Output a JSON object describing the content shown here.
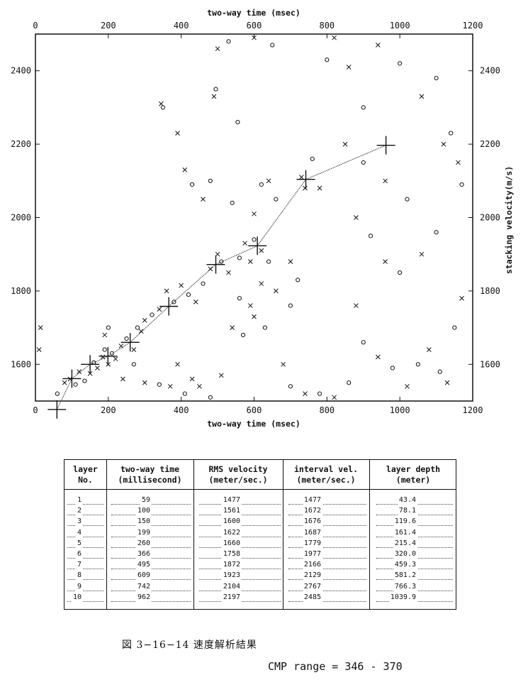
{
  "chart_data": {
    "type": "scatter",
    "title": "",
    "xlabel": "two-way time (msec)",
    "ylabel": "stacking velocity(m/s)",
    "xlim": [
      0,
      1200
    ],
    "ylim": [
      1500,
      2500
    ],
    "x_ticks": [
      "0",
      "200",
      "400",
      "600",
      "800",
      "1000",
      "1200"
    ],
    "y_ticks": [
      "1600",
      "1800",
      "2000",
      "2200",
      "2400"
    ],
    "picked_velocity_function": {
      "x": [
        59,
        100,
        150,
        199,
        260,
        366,
        495,
        609,
        742,
        962
      ],
      "y": [
        1477,
        1561,
        1600,
        1622,
        1660,
        1758,
        1872,
        1923,
        2104,
        2197
      ]
    },
    "semblance_markers": [
      {
        "x": 95,
        "y": 1560,
        "m": "x"
      },
      {
        "x": 110,
        "y": 1545,
        "m": "o"
      },
      {
        "x": 120,
        "y": 1580,
        "m": "x"
      },
      {
        "x": 135,
        "y": 1555,
        "m": "o"
      },
      {
        "x": 150,
        "y": 1575,
        "m": "x"
      },
      {
        "x": 160,
        "y": 1605,
        "m": "o"
      },
      {
        "x": 170,
        "y": 1590,
        "m": "x"
      },
      {
        "x": 185,
        "y": 1620,
        "m": "x"
      },
      {
        "x": 190,
        "y": 1640,
        "m": "o"
      },
      {
        "x": 200,
        "y": 1600,
        "m": "x"
      },
      {
        "x": 210,
        "y": 1630,
        "m": "o"
      },
      {
        "x": 220,
        "y": 1615,
        "m": "x"
      },
      {
        "x": 235,
        "y": 1650,
        "m": "x"
      },
      {
        "x": 250,
        "y": 1670,
        "m": "o"
      },
      {
        "x": 270,
        "y": 1640,
        "m": "x"
      },
      {
        "x": 280,
        "y": 1700,
        "m": "o"
      },
      {
        "x": 290,
        "y": 1690,
        "m": "x"
      },
      {
        "x": 300,
        "y": 1720,
        "m": "x"
      },
      {
        "x": 320,
        "y": 1735,
        "m": "o"
      },
      {
        "x": 340,
        "y": 1750,
        "m": "x"
      },
      {
        "x": 360,
        "y": 1800,
        "m": "x"
      },
      {
        "x": 380,
        "y": 1770,
        "m": "o"
      },
      {
        "x": 400,
        "y": 1815,
        "m": "x"
      },
      {
        "x": 420,
        "y": 1790,
        "m": "o"
      },
      {
        "x": 440,
        "y": 1770,
        "m": "x"
      },
      {
        "x": 460,
        "y": 1820,
        "m": "o"
      },
      {
        "x": 480,
        "y": 1860,
        "m": "x"
      },
      {
        "x": 500,
        "y": 1900,
        "m": "x"
      },
      {
        "x": 510,
        "y": 1880,
        "m": "o"
      },
      {
        "x": 530,
        "y": 1850,
        "m": "x"
      },
      {
        "x": 560,
        "y": 1890,
        "m": "o"
      },
      {
        "x": 575,
        "y": 1930,
        "m": "x"
      },
      {
        "x": 590,
        "y": 1880,
        "m": "x"
      },
      {
        "x": 600,
        "y": 1940,
        "m": "o"
      },
      {
        "x": 620,
        "y": 1910,
        "m": "x"
      },
      {
        "x": 640,
        "y": 1880,
        "m": "o"
      },
      {
        "x": 660,
        "y": 1800,
        "m": "x"
      },
      {
        "x": 700,
        "y": 1760,
        "m": "o"
      },
      {
        "x": 730,
        "y": 2110,
        "m": "x"
      },
      {
        "x": 740,
        "y": 2080,
        "m": "x"
      },
      {
        "x": 760,
        "y": 2160,
        "m": "o"
      },
      {
        "x": 780,
        "y": 2080,
        "m": "x"
      },
      {
        "x": 300,
        "y": 1550,
        "m": "x"
      },
      {
        "x": 340,
        "y": 1545,
        "m": "o"
      },
      {
        "x": 370,
        "y": 1540,
        "m": "x"
      },
      {
        "x": 390,
        "y": 1600,
        "m": "x"
      },
      {
        "x": 410,
        "y": 1520,
        "m": "o"
      },
      {
        "x": 450,
        "y": 1540,
        "m": "x"
      },
      {
        "x": 480,
        "y": 1510,
        "m": "o"
      },
      {
        "x": 510,
        "y": 1570,
        "m": "x"
      },
      {
        "x": 540,
        "y": 1700,
        "m": "x"
      },
      {
        "x": 570,
        "y": 1680,
        "m": "o"
      },
      {
        "x": 600,
        "y": 1730,
        "m": "x"
      },
      {
        "x": 630,
        "y": 1700,
        "m": "o"
      },
      {
        "x": 680,
        "y": 1600,
        "m": "x"
      },
      {
        "x": 700,
        "y": 1540,
        "m": "o"
      },
      {
        "x": 740,
        "y": 1520,
        "m": "x"
      },
      {
        "x": 780,
        "y": 1520,
        "m": "o"
      },
      {
        "x": 820,
        "y": 1510,
        "m": "x"
      },
      {
        "x": 860,
        "y": 1550,
        "m": "o"
      },
      {
        "x": 880,
        "y": 1760,
        "m": "x"
      },
      {
        "x": 900,
        "y": 1660,
        "m": "o"
      },
      {
        "x": 940,
        "y": 1620,
        "m": "x"
      },
      {
        "x": 980,
        "y": 1590,
        "m": "o"
      },
      {
        "x": 1020,
        "y": 1540,
        "m": "x"
      },
      {
        "x": 1050,
        "y": 1600,
        "m": "o"
      },
      {
        "x": 1080,
        "y": 1640,
        "m": "x"
      },
      {
        "x": 1110,
        "y": 1580,
        "m": "o"
      },
      {
        "x": 1130,
        "y": 1550,
        "m": "x"
      },
      {
        "x": 1150,
        "y": 1700,
        "m": "o"
      },
      {
        "x": 1170,
        "y": 1780,
        "m": "x"
      },
      {
        "x": 1160,
        "y": 2150,
        "m": "x"
      },
      {
        "x": 1140,
        "y": 2230,
        "m": "o"
      },
      {
        "x": 1120,
        "y": 2200,
        "m": "x"
      },
      {
        "x": 1170,
        "y": 2090,
        "m": "o"
      },
      {
        "x": 1100,
        "y": 2380,
        "m": "o"
      },
      {
        "x": 1060,
        "y": 2330,
        "m": "x"
      },
      {
        "x": 1000,
        "y": 2420,
        "m": "o"
      },
      {
        "x": 940,
        "y": 2470,
        "m": "x"
      },
      {
        "x": 900,
        "y": 2300,
        "m": "o"
      },
      {
        "x": 860,
        "y": 2410,
        "m": "x"
      },
      {
        "x": 820,
        "y": 2490,
        "m": "x"
      },
      {
        "x": 800,
        "y": 2430,
        "m": "o"
      },
      {
        "x": 850,
        "y": 2200,
        "m": "x"
      },
      {
        "x": 900,
        "y": 2150,
        "m": "o"
      },
      {
        "x": 960,
        "y": 2100,
        "m": "x"
      },
      {
        "x": 1020,
        "y": 2050,
        "m": "o"
      },
      {
        "x": 880,
        "y": 2000,
        "m": "x"
      },
      {
        "x": 920,
        "y": 1950,
        "m": "o"
      },
      {
        "x": 960,
        "y": 1880,
        "m": "x"
      },
      {
        "x": 1000,
        "y": 1850,
        "m": "o"
      },
      {
        "x": 1060,
        "y": 1900,
        "m": "x"
      },
      {
        "x": 1100,
        "y": 1960,
        "m": "o"
      },
      {
        "x": 350,
        "y": 2300,
        "m": "o"
      },
      {
        "x": 345,
        "y": 2310,
        "m": "x"
      },
      {
        "x": 390,
        "y": 2230,
        "m": "x"
      },
      {
        "x": 410,
        "y": 2130,
        "m": "x"
      },
      {
        "x": 430,
        "y": 2090,
        "m": "o"
      },
      {
        "x": 460,
        "y": 2050,
        "m": "x"
      },
      {
        "x": 480,
        "y": 2100,
        "m": "o"
      },
      {
        "x": 490,
        "y": 2330,
        "m": "x"
      },
      {
        "x": 495,
        "y": 2350,
        "m": "o"
      },
      {
        "x": 540,
        "y": 2040,
        "m": "o"
      },
      {
        "x": 555,
        "y": 2260,
        "m": "o"
      },
      {
        "x": 600,
        "y": 2010,
        "m": "x"
      },
      {
        "x": 620,
        "y": 2090,
        "m": "o"
      },
      {
        "x": 640,
        "y": 2100,
        "m": "x"
      },
      {
        "x": 660,
        "y": 2050,
        "m": "o"
      },
      {
        "x": 500,
        "y": 2460,
        "m": "x"
      },
      {
        "x": 530,
        "y": 2480,
        "m": "o"
      },
      {
        "x": 600,
        "y": 2490,
        "m": "x"
      },
      {
        "x": 650,
        "y": 2470,
        "m": "o"
      },
      {
        "x": 200,
        "y": 1700,
        "m": "o"
      },
      {
        "x": 190,
        "y": 1680,
        "m": "x"
      },
      {
        "x": 14,
        "y": 1700,
        "m": "x"
      },
      {
        "x": 10,
        "y": 1640,
        "m": "x"
      },
      {
        "x": 60,
        "y": 1520,
        "m": "o"
      },
      {
        "x": 80,
        "y": 1550,
        "m": "x"
      },
      {
        "x": 240,
        "y": 1560,
        "m": "x"
      },
      {
        "x": 270,
        "y": 1600,
        "m": "o"
      },
      {
        "x": 430,
        "y": 1560,
        "m": "x"
      },
      {
        "x": 560,
        "y": 1780,
        "m": "o"
      },
      {
        "x": 590,
        "y": 1760,
        "m": "x"
      },
      {
        "x": 620,
        "y": 1820,
        "m": "x"
      },
      {
        "x": 700,
        "y": 1880,
        "m": "x"
      },
      {
        "x": 720,
        "y": 1830,
        "m": "o"
      }
    ],
    "grid": false,
    "legend": "none"
  },
  "table": {
    "headers": [
      {
        "l1": "layer",
        "l2": "No."
      },
      {
        "l1": "two-way time",
        "l2": "(millisecond)"
      },
      {
        "l1": "RMS velocity",
        "l2": "(meter/sec.)"
      },
      {
        "l1": "interval vel.",
        "l2": "(meter/sec.)"
      },
      {
        "l1": "layer depth",
        "l2": "(meter)"
      }
    ],
    "rows": [
      {
        "layer": "1",
        "time": "59",
        "rms": "1477",
        "interval": "1477",
        "depth": "43.4"
      },
      {
        "layer": "2",
        "time": "100",
        "rms": "1561",
        "interval": "1672",
        "depth": "78.1"
      },
      {
        "layer": "3",
        "time": "150",
        "rms": "1600",
        "interval": "1676",
        "depth": "119.6"
      },
      {
        "layer": "4",
        "time": "199",
        "rms": "1622",
        "interval": "1687",
        "depth": "161.4"
      },
      {
        "layer": "5",
        "time": "260",
        "rms": "1660",
        "interval": "1779",
        "depth": "215.4"
      },
      {
        "layer": "6",
        "time": "366",
        "rms": "1758",
        "interval": "1977",
        "depth": "320.0"
      },
      {
        "layer": "7",
        "time": "495",
        "rms": "1872",
        "interval": "2166",
        "depth": "459.3"
      },
      {
        "layer": "8",
        "time": "609",
        "rms": "1923",
        "interval": "2129",
        "depth": "581.2"
      },
      {
        "layer": "9",
        "time": "742",
        "rms": "2104",
        "interval": "2767",
        "depth": "766.3"
      },
      {
        "layer": "10",
        "time": "962",
        "rms": "2197",
        "interval": "2485",
        "depth": "1039.9"
      }
    ]
  },
  "caption": "図 3−16−14  速度解析結果",
  "cmp_range": "CMP range = 346 - 370"
}
